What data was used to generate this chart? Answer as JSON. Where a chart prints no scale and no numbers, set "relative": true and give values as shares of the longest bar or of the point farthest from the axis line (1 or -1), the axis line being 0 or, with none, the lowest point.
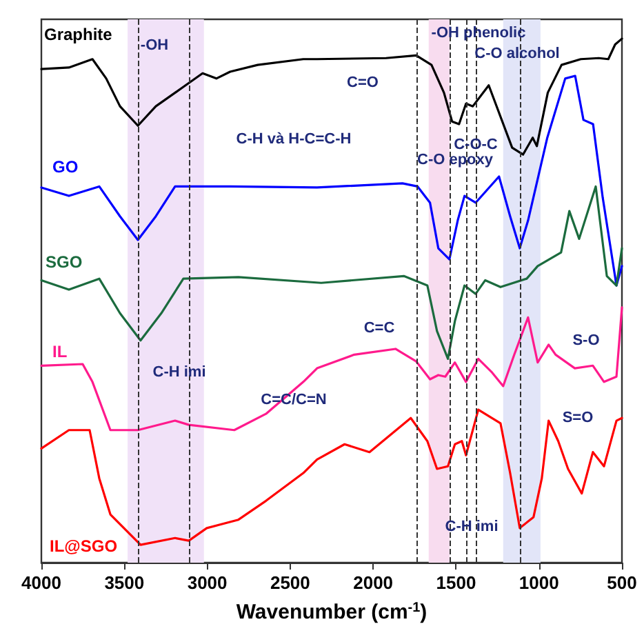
{
  "chart_data": {
    "type": "line",
    "relative": true,
    "xlabel": "Wavenumber (cm$^{-1}$)",
    "xlim": [
      4000,
      500
    ],
    "xticks": [
      4000,
      3500,
      3000,
      2500,
      2000,
      1500,
      1000,
      500
    ],
    "tick_labels": "x",
    "legend": false,
    "grid": false,
    "marker": "none",
    "line_style": "solid",
    "series": [
      {
        "name": "Graphite",
        "color": "#000000",
        "x": [
          4000,
          3834,
          3692,
          3609,
          3526,
          3418,
          3310,
          3144,
          3028,
          2945,
          2862,
          2696,
          2421,
          2338,
          1922,
          1740,
          1648,
          1573,
          1524,
          1482,
          1440,
          1399,
          1303,
          1162,
          1096,
          1038,
          1013,
          947,
          864,
          748,
          640,
          582,
          541,
          500
        ],
        "values": [
          0.942,
          0.945,
          0.961,
          0.924,
          0.871,
          0.834,
          0.871,
          0.908,
          0.934,
          0.924,
          0.937,
          0.95,
          0.961,
          0.961,
          0.963,
          0.968,
          0.95,
          0.897,
          0.842,
          0.837,
          0.876,
          0.871,
          0.911,
          0.792,
          0.779,
          0.811,
          0.795,
          0.897,
          0.95,
          0.961,
          0.963,
          0.961,
          0.989,
          1.0
        ]
      },
      {
        "name": "GO",
        "color": "#0000ff",
        "x": [
          4000,
          3834,
          3651,
          3526,
          3418,
          3310,
          3194,
          2862,
          2338,
          1823,
          1732,
          1657,
          1607,
          1540,
          1490,
          1449,
          1382,
          1241,
          1174,
          1116,
          1066,
          950,
          842,
          782,
          732,
          674,
          616,
          533,
          500
        ],
        "values": [
          0.716,
          0.7,
          0.718,
          0.661,
          0.616,
          0.661,
          0.718,
          0.718,
          0.716,
          0.724,
          0.718,
          0.687,
          0.6,
          0.579,
          0.653,
          0.7,
          0.687,
          0.737,
          0.661,
          0.6,
          0.653,
          0.811,
          0.924,
          0.929,
          0.845,
          0.837,
          0.697,
          0.529,
          0.566
        ]
      },
      {
        "name": "SGO",
        "color": "#1b6b3e",
        "x": [
          4000,
          3834,
          3651,
          3526,
          3402,
          3277,
          3144,
          2812,
          2313,
          1815,
          1673,
          1615,
          1549,
          1507,
          1449,
          1382,
          1324,
          1232,
          1074,
          1008,
          867,
          817,
          758,
          658,
          591,
          533,
          500
        ],
        "values": [
          0.539,
          0.521,
          0.542,
          0.476,
          0.424,
          0.476,
          0.542,
          0.545,
          0.534,
          0.547,
          0.529,
          0.442,
          0.389,
          0.461,
          0.529,
          0.513,
          0.539,
          0.526,
          0.542,
          0.566,
          0.592,
          0.671,
          0.618,
          0.718,
          0.547,
          0.529,
          0.6
        ]
      },
      {
        "name": "IL",
        "color": "#ff1a8c",
        "x": [
          4000,
          3751,
          3692,
          3584,
          3418,
          3194,
          3111,
          2837,
          2646,
          2421,
          2338,
          2114,
          1865,
          1740,
          1657,
          1607,
          1565,
          1507,
          1440,
          1366,
          1283,
          1216,
          1149,
          1066,
          1008,
          942,
          900,
          784,
          675,
          608,
          533,
          500
        ],
        "values": [
          0.376,
          0.379,
          0.345,
          0.253,
          0.253,
          0.271,
          0.263,
          0.253,
          0.284,
          0.345,
          0.371,
          0.397,
          0.408,
          0.384,
          0.35,
          0.358,
          0.355,
          0.382,
          0.345,
          0.389,
          0.363,
          0.337,
          0.397,
          0.468,
          0.382,
          0.416,
          0.397,
          0.371,
          0.376,
          0.345,
          0.355,
          0.487
        ]
      },
      {
        "name": "IL@SGO",
        "color": "#ff0000",
        "x": [
          4000,
          3834,
          3709,
          3651,
          3584,
          3402,
          3194,
          3111,
          3003,
          2812,
          2646,
          2421,
          2338,
          2172,
          2022,
          1773,
          1673,
          1615,
          1549,
          1507,
          1465,
          1440,
          1366,
          1283,
          1232,
          1174,
          1116,
          1033,
          983,
          942,
          884,
          825,
          742,
          675,
          608,
          533,
          500
        ],
        "values": [
          0.218,
          0.253,
          0.253,
          0.161,
          0.092,
          0.034,
          0.047,
          0.042,
          0.066,
          0.082,
          0.118,
          0.171,
          0.197,
          0.226,
          0.211,
          0.276,
          0.232,
          0.179,
          0.184,
          0.226,
          0.232,
          0.205,
          0.292,
          0.276,
          0.266,
          0.171,
          0.066,
          0.087,
          0.161,
          0.271,
          0.232,
          0.179,
          0.132,
          0.211,
          0.184,
          0.271,
          0.276
        ]
      }
    ],
    "bands": [
      {
        "axis": "x",
        "from": 3480,
        "to": 3020,
        "color": "#f1e2f8"
      },
      {
        "axis": "x",
        "from": 1665,
        "to": 1540,
        "color": "#f8dcef"
      },
      {
        "axis": "x",
        "from": 1216,
        "to": 991,
        "color": "#e2e5f8"
      }
    ],
    "ref_lines": [
      {
        "axis": "x",
        "value": 3420
      },
      {
        "axis": "x",
        "value": 3110
      },
      {
        "axis": "x",
        "value": 1740
      },
      {
        "axis": "x",
        "value": 1540
      },
      {
        "axis": "x",
        "value": 1440
      },
      {
        "axis": "x",
        "value": 1382
      },
      {
        "axis": "x",
        "value": 1116
      }
    ],
    "annotations": [
      "-OH",
      "C-H và H-C=C-H",
      "C=O",
      "-OH phenolic",
      "C-O alcohol",
      "C-O-C",
      "C-O epoxy",
      "C=C",
      "S-O",
      "S=O",
      "C=C/C=N",
      "C-H imi",
      "C-H imi"
    ]
  }
}
